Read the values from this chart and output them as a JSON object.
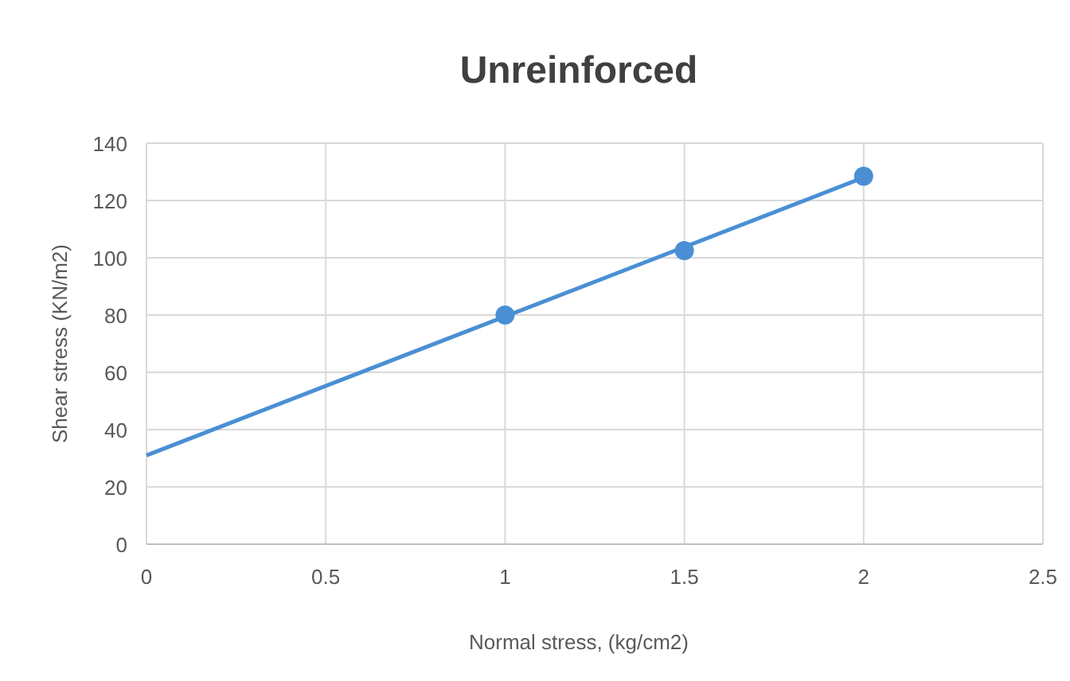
{
  "chart_data": {
    "type": "scatter",
    "title": "Unreinforced",
    "xlabel": "Normal stress, (kg/cm2)",
    "ylabel": "Shear stress (KN/m2)",
    "xlim": [
      0,
      2.5
    ],
    "xticks": [
      0,
      0.5,
      1,
      1.5,
      2,
      2.5
    ],
    "ylim": [
      0,
      140
    ],
    "yticks": [
      0,
      20,
      40,
      60,
      80,
      100,
      120,
      140
    ],
    "grid": true,
    "series": [
      {
        "type": "line",
        "color": "#4a8fd4",
        "x": [
          0,
          2
        ],
        "values": [
          31,
          128
        ],
        "marker": "none"
      },
      {
        "color": "#4a8fd4",
        "x": [
          1,
          1.5,
          2
        ],
        "values": [
          80,
          102.5,
          128.5
        ],
        "marker": "circle"
      }
    ]
  }
}
